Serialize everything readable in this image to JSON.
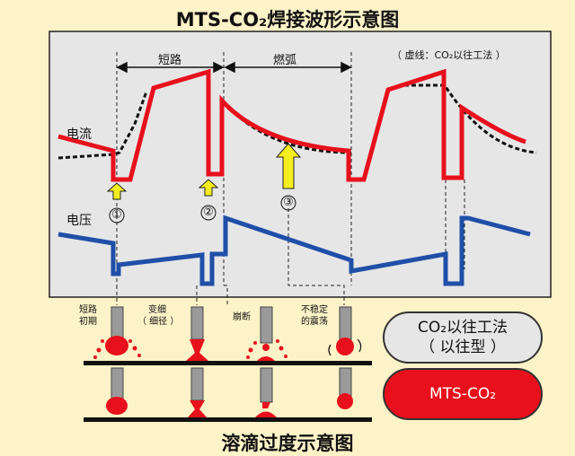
{
  "title": "MTS-CO₂焊接波形示意图",
  "bottom_title": "溶滴过度示意图",
  "legend_note": "（ 虚线：CO₂以往工法 ）",
  "phases": {
    "short_circuit": "短路",
    "arc": "燃弧"
  },
  "signals": {
    "current": "电流",
    "voltage": "电压"
  },
  "markers": [
    "①",
    "②",
    "③"
  ],
  "stages": {
    "s1": [
      "短路",
      "初期"
    ],
    "s2": [
      "变细",
      "（ 细径 ）"
    ],
    "s3": "崩断",
    "s4": [
      "不稳定",
      "的震荡"
    ]
  },
  "methods": {
    "conventional": [
      "CO₂以往工法",
      "（ 以往型 ）"
    ],
    "mts": "MTS-CO₂"
  },
  "colors": {
    "current": "#e8101c",
    "voltage": "#1f4fa8",
    "arrow": "#f5ee1e",
    "panel": "#e6e6e6"
  }
}
